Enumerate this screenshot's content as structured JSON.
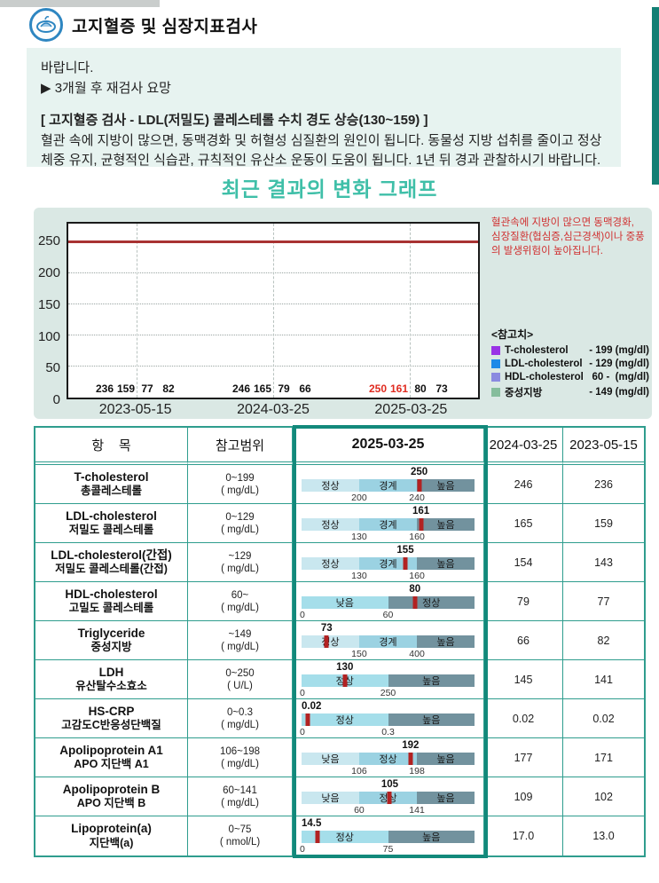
{
  "header": {
    "title": "고지혈증 및 심장지표검사",
    "icon": "lab-test-icon"
  },
  "summary_box": {
    "line1": "바랍니다.",
    "line2": "▶ 3개월 후 재검사 요망",
    "finding_title": "[ 고지혈증 검사 - LDL(저밀도) 콜레스테롤 수치 경도 상승(130~159) ]",
    "finding_body": "혈관 속에 지방이 많으면, 동맥경화 및 허혈성 심질환의 원인이 됩니다. 동물성 지방 섭취를 줄이고 정상 체중 유지, 균형적인 식습관, 규칙적인 유산소 운동이 도움이 됩니다. 1년 뒤 경과 관찰하시기 바랍니다."
  },
  "chart_section": {
    "title": "최근 결과의 변화 그래프",
    "warning_text": "혈관속에 지방이 많으면 동맥경화, 심장질환(협심증,심근경색)이나 중풍의 발생위험이 높아집니다.",
    "legend_title": "<참고치>"
  },
  "chart_data": {
    "type": "bar",
    "categories": [
      "2023-05-15",
      "2024-03-25",
      "2025-03-25"
    ],
    "series": [
      {
        "name": "T-cholesterol",
        "ref_text": "- 199 (mg/dl)",
        "color": "#9933e6",
        "values": [
          236,
          246,
          250
        ],
        "alert_indices": [
          2
        ]
      },
      {
        "name": "LDL-cholesterol",
        "ref_text": "- 129 (mg/dl)",
        "color": "#1e8ae8",
        "values": [
          159,
          165,
          161
        ],
        "alert_indices": [
          2
        ]
      },
      {
        "name": "HDL-cholesterol",
        "ref_text": "60 -  (mg/dl)",
        "color": "#8a8ae0",
        "values": [
          77,
          79,
          80
        ],
        "alert_indices": []
      },
      {
        "name": "중성지방",
        "ref_text": "- 149 (mg/dl)",
        "color": "#85bd9c",
        "values": [
          82,
          66,
          73
        ],
        "alert_indices": []
      }
    ],
    "threshold_line": 250,
    "ylim": [
      0,
      280
    ],
    "yticks": [
      0,
      50,
      100,
      150,
      200,
      250
    ],
    "grid": true,
    "legend_position": "right"
  },
  "table": {
    "columns": [
      "항    목",
      "참고범위",
      "2025-03-25",
      "2024-03-25",
      "2023-05-15"
    ],
    "highlight_column": "2025-03-25",
    "tones": {
      "light": "#c9e7ef",
      "mid": "#9bd2e2",
      "light2": "#a5deea",
      "dark": "#72929e",
      "marker": "#b22222"
    },
    "rows": [
      {
        "name_en": "T-cholesterol",
        "name_kr": "총콜레스테롤",
        "range": "0~199",
        "unit": "( mg/dL)",
        "value": "250",
        "marker_pos": 0.68,
        "segments": [
          {
            "label": "정상",
            "tone": "light"
          },
          {
            "label": "경계",
            "tone": "mid"
          },
          {
            "label": "높음",
            "tone": "dark"
          }
        ],
        "ticks": [
          {
            "label": "200",
            "pos": 0.333
          },
          {
            "label": "240",
            "pos": 0.667
          }
        ],
        "prev1": "246",
        "prev2": "236"
      },
      {
        "name_en": "LDL-cholesterol",
        "name_kr": "저밀도 콜레스테롤",
        "range": "0~129",
        "unit": "( mg/dL)",
        "value": "161",
        "marker_pos": 0.69,
        "segments": [
          {
            "label": "정상",
            "tone": "light"
          },
          {
            "label": "경계",
            "tone": "mid"
          },
          {
            "label": "높음",
            "tone": "dark"
          }
        ],
        "ticks": [
          {
            "label": "130",
            "pos": 0.333
          },
          {
            "label": "160",
            "pos": 0.667
          }
        ],
        "prev1": "165",
        "prev2": "159"
      },
      {
        "name_en": "LDL-cholesterol(간접)",
        "name_kr": "저밀도 콜레스테롤(간접)",
        "range": "~129",
        "unit": "( mg/dL)",
        "value": "155",
        "marker_pos": 0.6,
        "segments": [
          {
            "label": "정상",
            "tone": "light"
          },
          {
            "label": "경계",
            "tone": "mid"
          },
          {
            "label": "높음",
            "tone": "dark"
          }
        ],
        "ticks": [
          {
            "label": "130",
            "pos": 0.333
          },
          {
            "label": "160",
            "pos": 0.667
          }
        ],
        "prev1": "154",
        "prev2": "143"
      },
      {
        "name_en": "HDL-cholesterol",
        "name_kr": "고밀도 콜레스테롤",
        "range": "60~",
        "unit": "( mg/dL)",
        "value": "80",
        "marker_pos": 0.655,
        "segments": [
          {
            "label": "낮음",
            "tone": "light2"
          },
          {
            "label": "정상",
            "tone": "dark"
          }
        ],
        "ticks": [
          {
            "label": "0",
            "pos": 0
          },
          {
            "label": "60",
            "pos": 0.5
          }
        ],
        "prev1": "79",
        "prev2": "77"
      },
      {
        "name_en": "Triglyceride",
        "name_kr": "중성지방",
        "range": "~149",
        "unit": "( mg/dL)",
        "value": "73",
        "marker_pos": 0.145,
        "segments": [
          {
            "label": "정상",
            "tone": "light"
          },
          {
            "label": "경계",
            "tone": "mid"
          },
          {
            "label": "높음",
            "tone": "dark"
          }
        ],
        "ticks": [
          {
            "label": "150",
            "pos": 0.333
          },
          {
            "label": "400",
            "pos": 0.667
          }
        ],
        "prev1": "66",
        "prev2": "82"
      },
      {
        "name_en": "LDH",
        "name_kr": "유산탈수소효소",
        "range": "0~250",
        "unit": "( U/L)",
        "value": "130",
        "marker_pos": 0.25,
        "segments": [
          {
            "label": "정상",
            "tone": "light2"
          },
          {
            "label": "높음",
            "tone": "dark"
          }
        ],
        "ticks": [
          {
            "label": "0",
            "pos": 0
          },
          {
            "label": "250",
            "pos": 0.5
          }
        ],
        "prev1": "145",
        "prev2": "141"
      },
      {
        "name_en": "HS-CRP",
        "name_kr": "고감도C반응성단백질",
        "range": "0~0.3",
        "unit": "( mg/dL)",
        "value": "0.02",
        "marker_pos": 0.035,
        "segments": [
          {
            "label": "정상",
            "tone": "light2"
          },
          {
            "label": "높음",
            "tone": "dark"
          }
        ],
        "ticks": [
          {
            "label": "0",
            "pos": 0
          },
          {
            "label": "0.3",
            "pos": 0.5
          }
        ],
        "prev1": "0.02",
        "prev2": "0.02"
      },
      {
        "name_en": "Apolipoprotein A1",
        "name_kr": "APO 지단백 A1",
        "range": "106~198",
        "unit": "( mg/dL)",
        "value": "192",
        "marker_pos": 0.63,
        "segments": [
          {
            "label": "낮음",
            "tone": "light"
          },
          {
            "label": "정상",
            "tone": "mid"
          },
          {
            "label": "높음",
            "tone": "dark"
          }
        ],
        "ticks": [
          {
            "label": "106",
            "pos": 0.333
          },
          {
            "label": "198",
            "pos": 0.667
          }
        ],
        "prev1": "177",
        "prev2": "171"
      },
      {
        "name_en": "Apolipoprotein B",
        "name_kr": "APO 지단백 B",
        "range": "60~141",
        "unit": "( mg/dL)",
        "value": "105",
        "marker_pos": 0.51,
        "segments": [
          {
            "label": "낮음",
            "tone": "light"
          },
          {
            "label": "정상",
            "tone": "mid"
          },
          {
            "label": "높음",
            "tone": "dark"
          }
        ],
        "ticks": [
          {
            "label": "60",
            "pos": 0.333
          },
          {
            "label": "141",
            "pos": 0.667
          }
        ],
        "prev1": "109",
        "prev2": "102"
      },
      {
        "name_en": "Lipoprotein(a)",
        "name_kr": "지단백(a)",
        "range": "0~75",
        "unit": "( nmol/L)",
        "value": "14.5",
        "marker_pos": 0.09,
        "segments": [
          {
            "label": "정상",
            "tone": "light2"
          },
          {
            "label": "높음",
            "tone": "dark"
          }
        ],
        "ticks": [
          {
            "label": "0",
            "pos": 0
          },
          {
            "label": "75",
            "pos": 0.5
          }
        ],
        "prev1": "17.0",
        "prev2": "13.0"
      }
    ]
  },
  "colors": {
    "accent_teal": "#2f9d8e",
    "highlight_border": "#12897b",
    "title_teal": "#3fbfa8",
    "warning_red": "#d03030",
    "threshold_red": "#a83232",
    "alert_value_red": "#e02b20",
    "infobox_bg": "#e7f3f0",
    "chartbox_bg": "#dae8e4",
    "side_accent": "#137f74"
  }
}
